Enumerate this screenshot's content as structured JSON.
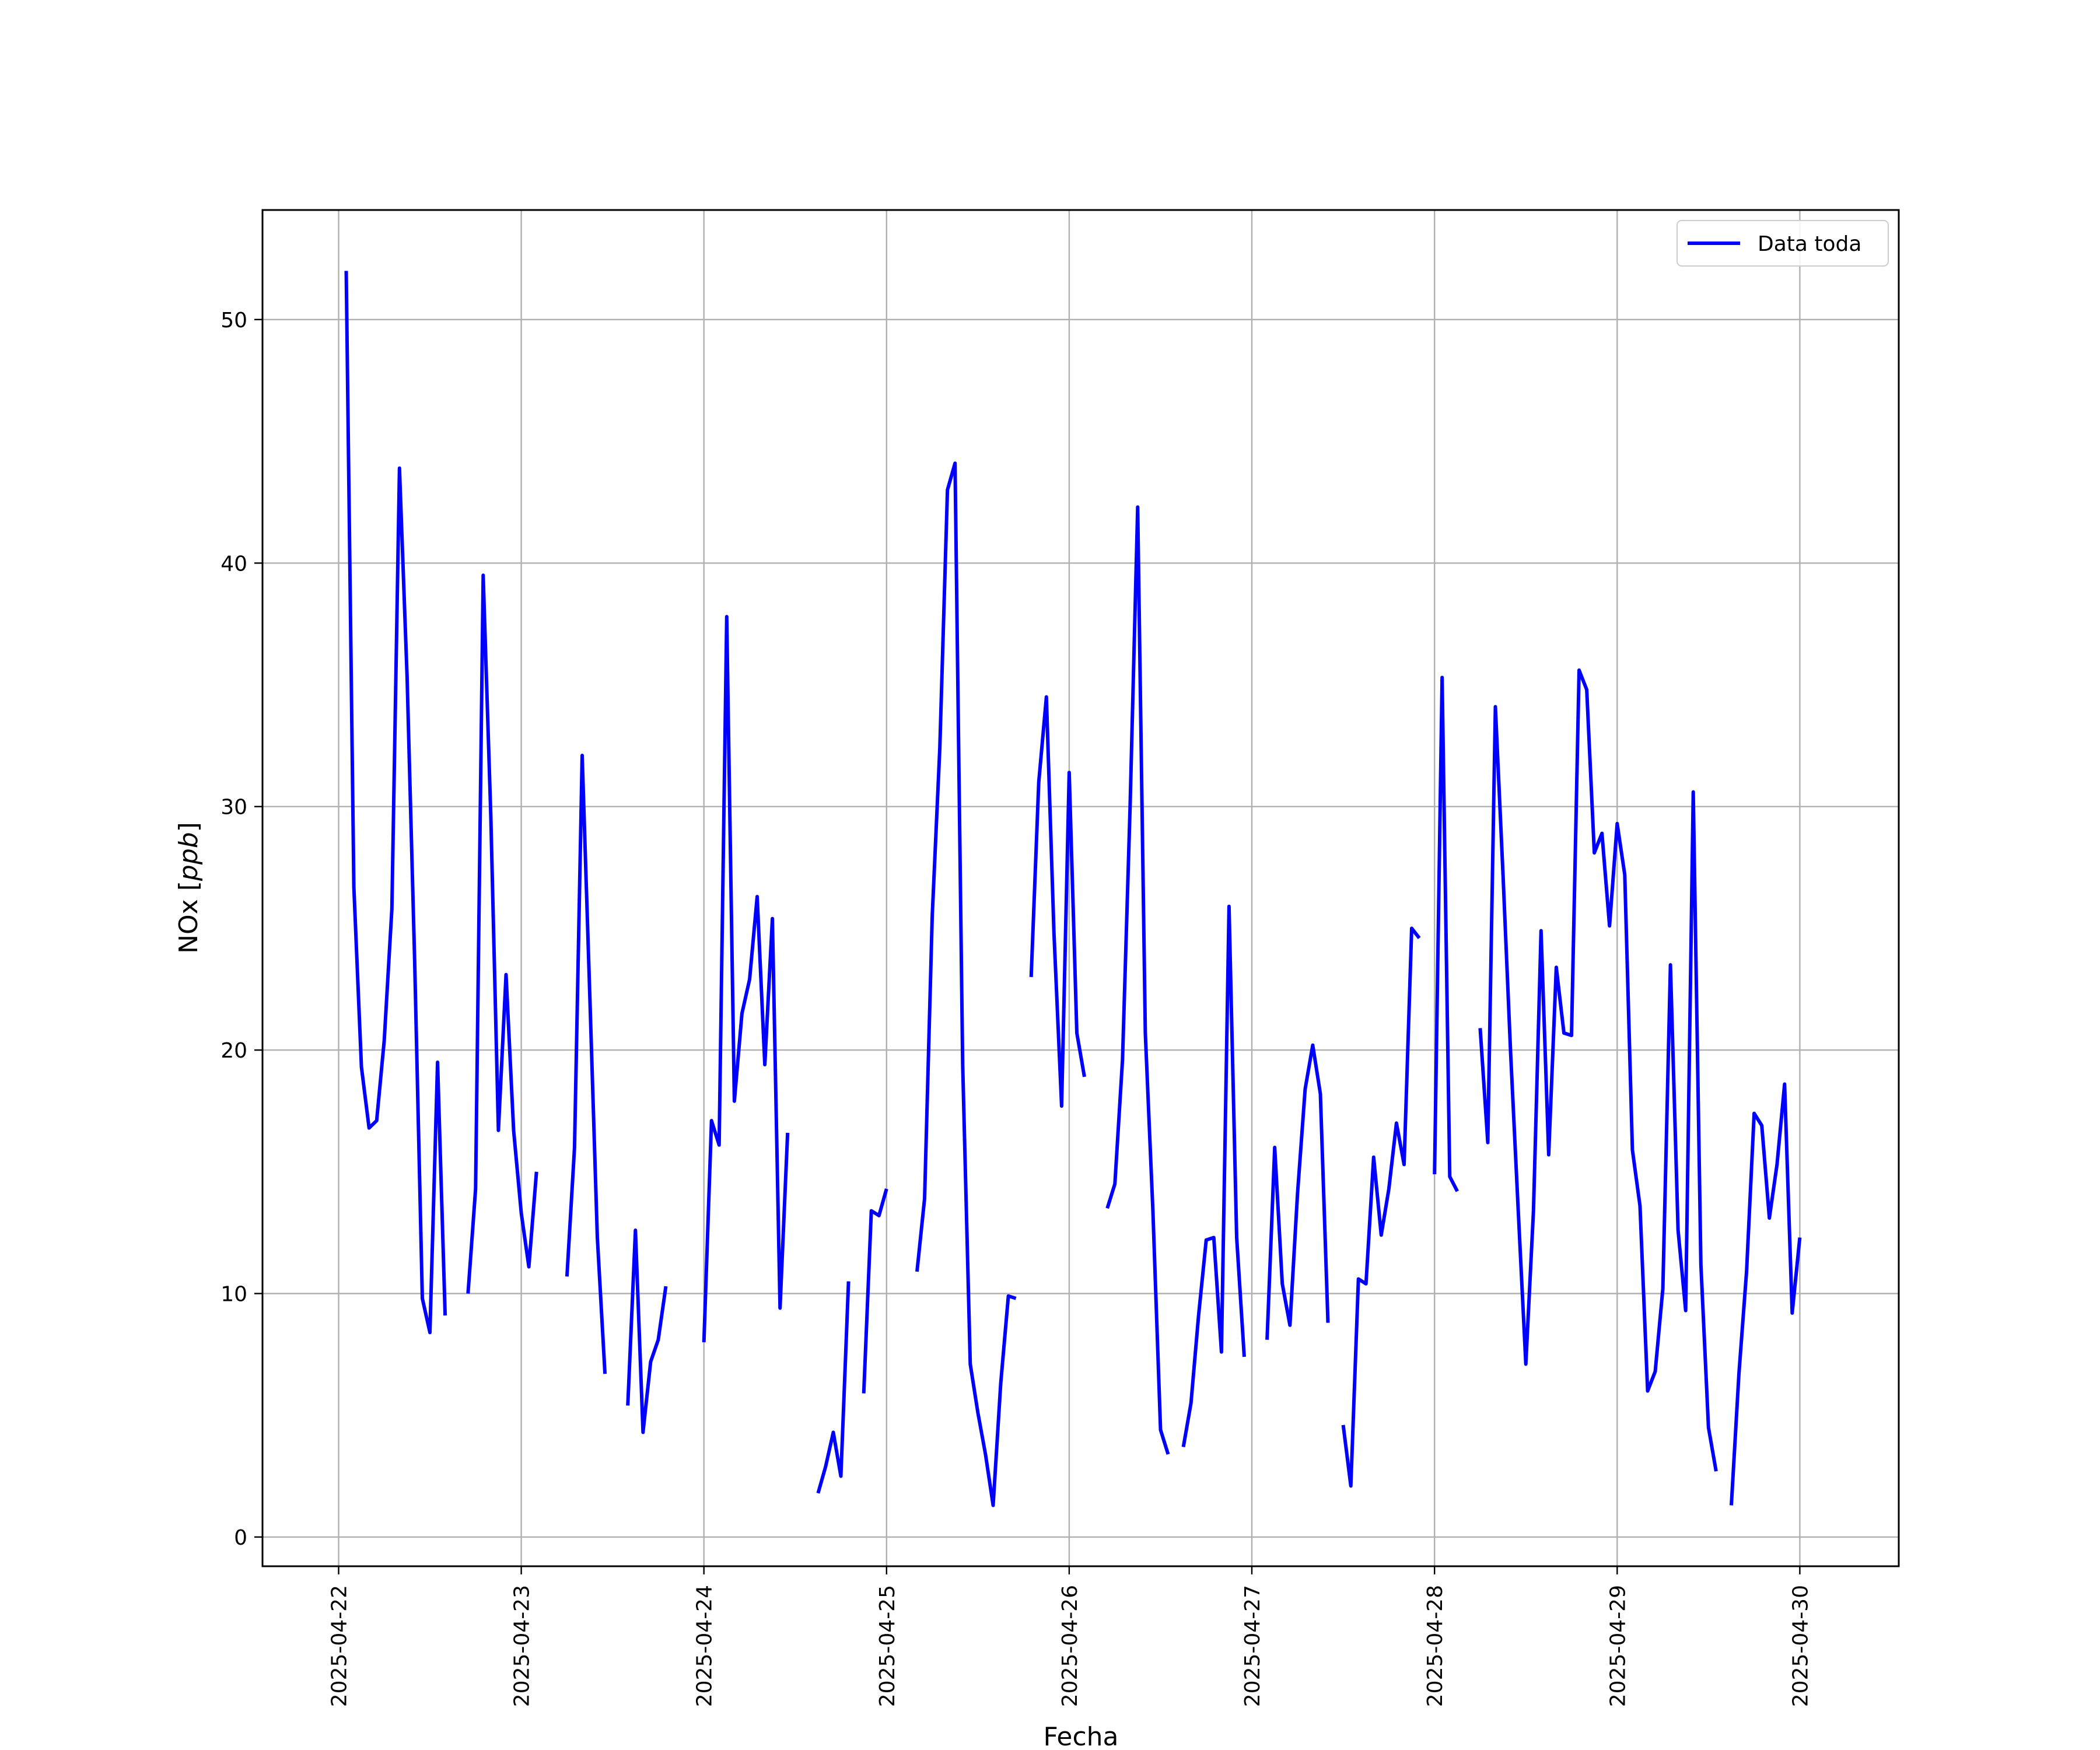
{
  "chart_data": {
    "type": "line",
    "xlabel": "Fecha",
    "ylabel": "NOx",
    "ylabel_unit": "ppb",
    "xlim": [
      "2025-04-21 14:00",
      "2025-04-30 13:00"
    ],
    "ylim": [
      -1.2,
      54.5
    ],
    "x_ticks": [
      "2025-04-22",
      "2025-04-23",
      "2025-04-24",
      "2025-04-25",
      "2025-04-26",
      "2025-04-27",
      "2025-04-28",
      "2025-04-29",
      "2025-04-30"
    ],
    "y_ticks": [
      0,
      10,
      20,
      30,
      40,
      50
    ],
    "grid": true,
    "legend_position": "top-right",
    "series": [
      {
        "name": "Data toda",
        "color": "#0000ff",
        "segments": [
          [
            [
              "2025-04-22 01:00",
              52.0
            ],
            [
              "2025-04-22 02:00",
              26.7
            ],
            [
              "2025-04-22 03:00",
              19.3
            ],
            [
              "2025-04-22 04:00",
              16.8
            ],
            [
              "2025-04-22 05:00",
              17.1
            ],
            [
              "2025-04-22 06:00",
              20.4
            ],
            [
              "2025-04-22 07:00",
              25.8
            ],
            [
              "2025-04-22 08:00",
              43.9
            ],
            [
              "2025-04-22 09:00",
              35.3
            ],
            [
              "2025-04-22 10:00",
              23.6
            ],
            [
              "2025-04-22 11:00",
              9.8
            ],
            [
              "2025-04-22 12:00",
              8.4
            ],
            [
              "2025-04-22 13:00",
              19.5
            ],
            [
              "2025-04-22 14:00",
              9.1
            ]
          ],
          [
            [
              "2025-04-22 17:00",
              10.0
            ],
            [
              "2025-04-22 18:00",
              14.3
            ],
            [
              "2025-04-22 19:00",
              39.5
            ],
            [
              "2025-04-22 20:00",
              29.6
            ],
            [
              "2025-04-22 21:00",
              16.7
            ],
            [
              "2025-04-22 22:00",
              23.1
            ],
            [
              "2025-04-22 23:00",
              16.7
            ],
            [
              "2025-04-23 00:00",
              13.3
            ],
            [
              "2025-04-23 01:00",
              11.1
            ],
            [
              "2025-04-23 02:00",
              15.0
            ]
          ],
          [
            [
              "2025-04-23 06:00",
              10.7
            ],
            [
              "2025-04-23 07:00",
              16.0
            ],
            [
              "2025-04-23 08:00",
              32.1
            ],
            [
              "2025-04-23 09:00",
              22.3
            ],
            [
              "2025-04-23 10:00",
              12.3
            ],
            [
              "2025-04-23 11:00",
              6.7
            ]
          ],
          [
            [
              "2025-04-23 14:00",
              5.4
            ],
            [
              "2025-04-23 15:00",
              12.6
            ],
            [
              "2025-04-23 16:00",
              4.3
            ],
            [
              "2025-04-23 17:00",
              7.2
            ],
            [
              "2025-04-23 18:00",
              8.1
            ],
            [
              "2025-04-23 19:00",
              10.3
            ]
          ],
          [
            [
              "2025-04-24 00:00",
              8.0
            ],
            [
              "2025-04-24 01:00",
              17.1
            ],
            [
              "2025-04-24 02:00",
              16.1
            ],
            [
              "2025-04-24 03:00",
              37.8
            ],
            [
              "2025-04-24 04:00",
              17.9
            ],
            [
              "2025-04-24 05:00",
              21.5
            ],
            [
              "2025-04-24 06:00",
              22.9
            ],
            [
              "2025-04-24 07:00",
              26.3
            ],
            [
              "2025-04-24 08:00",
              19.4
            ],
            [
              "2025-04-24 09:00",
              25.4
            ],
            [
              "2025-04-24 10:00",
              9.4
            ],
            [
              "2025-04-24 11:00",
              16.6
            ]
          ],
          [
            [
              "2025-04-24 15:00",
              1.8
            ],
            [
              "2025-04-24 16:00",
              2.9
            ],
            [
              "2025-04-24 17:00",
              4.3
            ],
            [
              "2025-04-24 18:00",
              2.5
            ],
            [
              "2025-04-24 19:00",
              10.5
            ]
          ],
          [
            [
              "2025-04-24 21:00",
              5.9
            ],
            [
              "2025-04-24 22:00",
              13.4
            ],
            [
              "2025-04-24 23:00",
              13.2
            ],
            [
              "2025-04-25 00:00",
              14.3
            ]
          ],
          [
            [
              "2025-04-25 04:00",
              10.9
            ],
            [
              "2025-04-25 05:00",
              13.9
            ],
            [
              "2025-04-25 06:00",
              25.5
            ],
            [
              "2025-04-25 07:00",
              32.4
            ],
            [
              "2025-04-25 08:00",
              43.0
            ],
            [
              "2025-04-25 09:00",
              44.1
            ],
            [
              "2025-04-25 10:00",
              19.4
            ],
            [
              "2025-04-25 11:00",
              7.1
            ],
            [
              "2025-04-25 12:00",
              5.1
            ],
            [
              "2025-04-25 13:00",
              3.4
            ],
            [
              "2025-04-25 14:00",
              1.3
            ],
            [
              "2025-04-25 15:00",
              6.3
            ],
            [
              "2025-04-25 16:00",
              9.9
            ],
            [
              "2025-04-25 17:00",
              9.8
            ]
          ],
          [
            [
              "2025-04-25 19:00",
              23.0
            ],
            [
              "2025-04-25 20:00",
              31.0
            ],
            [
              "2025-04-25 21:00",
              34.5
            ],
            [
              "2025-04-25 22:00",
              24.8
            ],
            [
              "2025-04-25 23:00",
              17.7
            ],
            [
              "2025-04-26 00:00",
              31.4
            ],
            [
              "2025-04-26 01:00",
              20.7
            ],
            [
              "2025-04-26 02:00",
              18.9
            ]
          ],
          [
            [
              "2025-04-26 05:00",
              13.5
            ],
            [
              "2025-04-26 06:00",
              14.5
            ],
            [
              "2025-04-26 07:00",
              19.6
            ],
            [
              "2025-04-26 08:00",
              30.0
            ],
            [
              "2025-04-26 09:00",
              42.3
            ],
            [
              "2025-04-26 10:00",
              20.7
            ],
            [
              "2025-04-26 11:00",
              13.4
            ],
            [
              "2025-04-26 12:00",
              4.4
            ],
            [
              "2025-04-26 13:00",
              3.4
            ]
          ],
          [
            [
              "2025-04-26 15:00",
              3.7
            ],
            [
              "2025-04-26 16:00",
              5.5
            ],
            [
              "2025-04-26 17:00",
              9.1
            ],
            [
              "2025-04-26 18:00",
              12.2
            ],
            [
              "2025-04-26 19:00",
              12.3
            ],
            [
              "2025-04-26 20:00",
              7.6
            ],
            [
              "2025-04-26 21:00",
              25.9
            ],
            [
              "2025-04-26 22:00",
              12.3
            ],
            [
              "2025-04-26 23:00",
              7.4
            ]
          ],
          [
            [
              "2025-04-27 02:00",
              8.1
            ],
            [
              "2025-04-27 03:00",
              16.0
            ],
            [
              "2025-04-27 04:00",
              10.4
            ],
            [
              "2025-04-27 05:00",
              8.7
            ],
            [
              "2025-04-27 06:00",
              14.1
            ],
            [
              "2025-04-27 07:00",
              18.4
            ],
            [
              "2025-04-27 08:00",
              20.2
            ],
            [
              "2025-04-27 09:00",
              18.2
            ],
            [
              "2025-04-27 10:00",
              8.8
            ]
          ],
          [
            [
              "2025-04-27 12:00",
              4.6
            ],
            [
              "2025-04-27 13:00",
              2.1
            ],
            [
              "2025-04-27 14:00",
              10.6
            ],
            [
              "2025-04-27 15:00",
              10.4
            ],
            [
              "2025-04-27 16:00",
              15.6
            ],
            [
              "2025-04-27 17:00",
              12.4
            ],
            [
              "2025-04-27 18:00",
              14.3
            ],
            [
              "2025-04-27 19:00",
              17.0
            ],
            [
              "2025-04-27 20:00",
              15.3
            ],
            [
              "2025-04-27 21:00",
              25.0
            ],
            [
              "2025-04-27 22:00",
              24.6
            ]
          ],
          [
            [
              "2025-04-28 00:00",
              14.9
            ],
            [
              "2025-04-28 01:00",
              35.3
            ],
            [
              "2025-04-28 02:00",
              14.8
            ],
            [
              "2025-04-28 03:00",
              14.2
            ]
          ],
          [
            [
              "2025-04-28 06:00",
              20.9
            ],
            [
              "2025-04-28 07:00",
              16.2
            ],
            [
              "2025-04-28 08:00",
              34.1
            ],
            [
              "2025-04-28 09:00",
              27.2
            ],
            [
              "2025-04-28 10:00",
              19.9
            ],
            [
              "2025-04-28 11:00",
              13.4
            ],
            [
              "2025-04-28 12:00",
              7.1
            ],
            [
              "2025-04-28 13:00",
              13.4
            ],
            [
              "2025-04-28 14:00",
              24.9
            ],
            [
              "2025-04-28 15:00",
              15.7
            ],
            [
              "2025-04-28 16:00",
              23.4
            ],
            [
              "2025-04-28 17:00",
              20.7
            ],
            [
              "2025-04-28 18:00",
              20.6
            ],
            [
              "2025-04-28 19:00",
              35.6
            ],
            [
              "2025-04-28 20:00",
              34.8
            ],
            [
              "2025-04-28 21:00",
              28.1
            ],
            [
              "2025-04-28 22:00",
              28.9
            ],
            [
              "2025-04-28 23:00",
              25.1
            ],
            [
              "2025-04-29 00:00",
              29.3
            ],
            [
              "2025-04-29 01:00",
              27.2
            ],
            [
              "2025-04-29 02:00",
              15.9
            ],
            [
              "2025-04-29 03:00",
              13.6
            ],
            [
              "2025-04-29 04:00",
              6.0
            ],
            [
              "2025-04-29 05:00",
              6.8
            ],
            [
              "2025-04-29 06:00",
              10.2
            ],
            [
              "2025-04-29 07:00",
              23.5
            ],
            [
              "2025-04-29 08:00",
              12.6
            ],
            [
              "2025-04-29 09:00",
              9.3
            ],
            [
              "2025-04-29 10:00",
              30.6
            ],
            [
              "2025-04-29 11:00",
              11.2
            ],
            [
              "2025-04-29 12:00",
              4.5
            ],
            [
              "2025-04-29 13:00",
              2.7
            ]
          ],
          [
            [
              "2025-04-29 15:00",
              1.3
            ],
            [
              "2025-04-29 16:00",
              6.7
            ],
            [
              "2025-04-29 17:00",
              10.9
            ],
            [
              "2025-04-29 18:00",
              17.4
            ],
            [
              "2025-04-29 19:00",
              16.9
            ],
            [
              "2025-04-29 20:00",
              13.1
            ],
            [
              "2025-04-29 21:00",
              15.3
            ],
            [
              "2025-04-29 22:00",
              18.6
            ],
            [
              "2025-04-29 23:00",
              9.2
            ],
            [
              "2025-04-30 00:00",
              12.3
            ]
          ]
        ]
      }
    ]
  }
}
